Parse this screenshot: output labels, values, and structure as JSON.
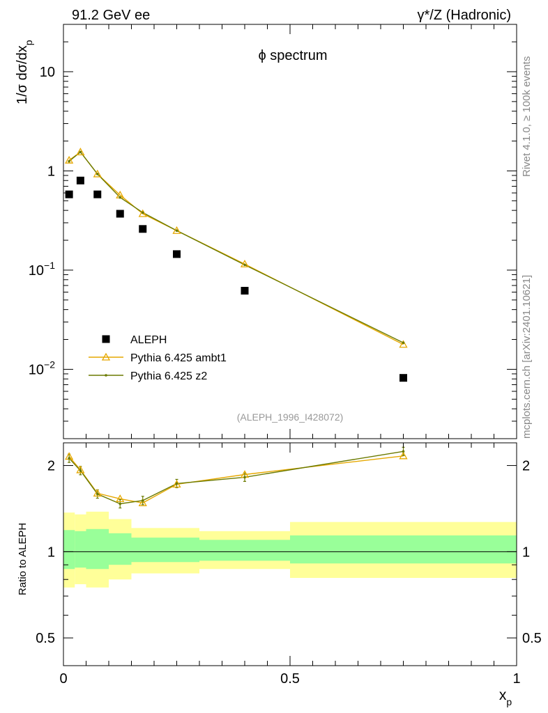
{
  "header": {
    "left": "91.2 GeV ee",
    "right": "γ*/Z (Hadronic)"
  },
  "side_texts": {
    "rivet": "Rivet 4.1.0, ≥ 100k events",
    "mcplots": "mcplots.cern.ch [arXiv:2401.10621]"
  },
  "chart_data": [
    {
      "type": "scatter",
      "panel": "main",
      "title": "ϕ spectrum",
      "analysis_label": "(ALEPH_1996_I428072)",
      "ylabel": "1/σ  dσ/dx_p",
      "xlim": [
        0,
        1
      ],
      "ylim": [
        0.002,
        30
      ],
      "yscale": "log",
      "yticks": [
        {
          "v": 10,
          "base": "10",
          "exp": ""
        },
        {
          "v": 1,
          "base": "1",
          "exp": ""
        },
        {
          "v": 0.1,
          "base": "10",
          "exp": "−1"
        },
        {
          "v": 0.01,
          "base": "10",
          "exp": "−2"
        }
      ],
      "legend_position": "bottom-left",
      "legend": [
        {
          "name": "ALEPH",
          "kind": "data",
          "color": "#000000"
        },
        {
          "name": "Pythia 6.425 ambt1",
          "kind": "triangle",
          "color": "#e6a800"
        },
        {
          "name": "Pythia 6.425 z2",
          "kind": "dot",
          "color": "#6b7a00"
        }
      ],
      "series": [
        {
          "name": "ALEPH",
          "x": [
            0.0125,
            0.0375,
            0.075,
            0.125,
            0.175,
            0.25,
            0.4,
            0.75
          ],
          "y": [
            0.58,
            0.8,
            0.58,
            0.37,
            0.26,
            0.145,
            0.062,
            0.0082
          ]
        },
        {
          "name": "Pythia 6.425 ambt1",
          "x": [
            0.0125,
            0.0375,
            0.075,
            0.125,
            0.175,
            0.25,
            0.4,
            0.75
          ],
          "y": [
            1.28,
            1.55,
            0.93,
            0.57,
            0.37,
            0.25,
            0.115,
            0.0178
          ]
        },
        {
          "name": "Pythia 6.425 z2",
          "x": [
            0.0125,
            0.0375,
            0.075,
            0.125,
            0.175,
            0.25,
            0.4,
            0.75
          ],
          "y": [
            1.25,
            1.55,
            0.93,
            0.54,
            0.38,
            0.25,
            0.113,
            0.0185
          ]
        }
      ]
    },
    {
      "type": "line",
      "panel": "ratio",
      "ylabel": "Ratio to ALEPH",
      "xlabel": "x_p",
      "xlim": [
        0,
        1
      ],
      "ylim": [
        0.4,
        2.4
      ],
      "yscale": "log",
      "yticks": [
        {
          "v": 2,
          "label": "2"
        },
        {
          "v": 1,
          "label": "1"
        },
        {
          "v": 0.5,
          "label": "0.5"
        }
      ],
      "xticks": [
        {
          "v": 0,
          "label": "0"
        },
        {
          "v": 0.5,
          "label": "0.5"
        },
        {
          "v": 1,
          "label": "1"
        }
      ],
      "bands": [
        {
          "x0": 0.0,
          "x1": 0.025,
          "inner": [
            0.87,
            1.19
          ],
          "outer": [
            0.75,
            1.37
          ]
        },
        {
          "x0": 0.025,
          "x1": 0.05,
          "inner": [
            0.88,
            1.18
          ],
          "outer": [
            0.77,
            1.35
          ]
        },
        {
          "x0": 0.05,
          "x1": 0.1,
          "inner": [
            0.87,
            1.2
          ],
          "outer": [
            0.75,
            1.38
          ]
        },
        {
          "x0": 0.1,
          "x1": 0.15,
          "inner": [
            0.9,
            1.16
          ],
          "outer": [
            0.8,
            1.3
          ]
        },
        {
          "x0": 0.15,
          "x1": 0.2,
          "inner": [
            0.92,
            1.12
          ],
          "outer": [
            0.84,
            1.21
          ]
        },
        {
          "x0": 0.2,
          "x1": 0.3,
          "inner": [
            0.92,
            1.12
          ],
          "outer": [
            0.84,
            1.21
          ]
        },
        {
          "x0": 0.3,
          "x1": 0.5,
          "inner": [
            0.93,
            1.1
          ],
          "outer": [
            0.87,
            1.18
          ]
        },
        {
          "x0": 0.5,
          "x1": 1.0,
          "inner": [
            0.91,
            1.14
          ],
          "outer": [
            0.81,
            1.27
          ]
        }
      ],
      "series": [
        {
          "name": "Pythia 6.425 ambt1",
          "x": [
            0.0125,
            0.0375,
            0.075,
            0.125,
            0.175,
            0.25,
            0.4,
            0.75
          ],
          "y": [
            2.15,
            1.93,
            1.6,
            1.53,
            1.48,
            1.72,
            1.86,
            2.16
          ]
        },
        {
          "name": "Pythia 6.425 z2",
          "x": [
            0.0125,
            0.0375,
            0.075,
            0.125,
            0.175,
            0.25,
            0.4,
            0.75
          ],
          "y": [
            2.12,
            1.92,
            1.59,
            1.47,
            1.51,
            1.73,
            1.82,
            2.24
          ]
        }
      ]
    }
  ]
}
